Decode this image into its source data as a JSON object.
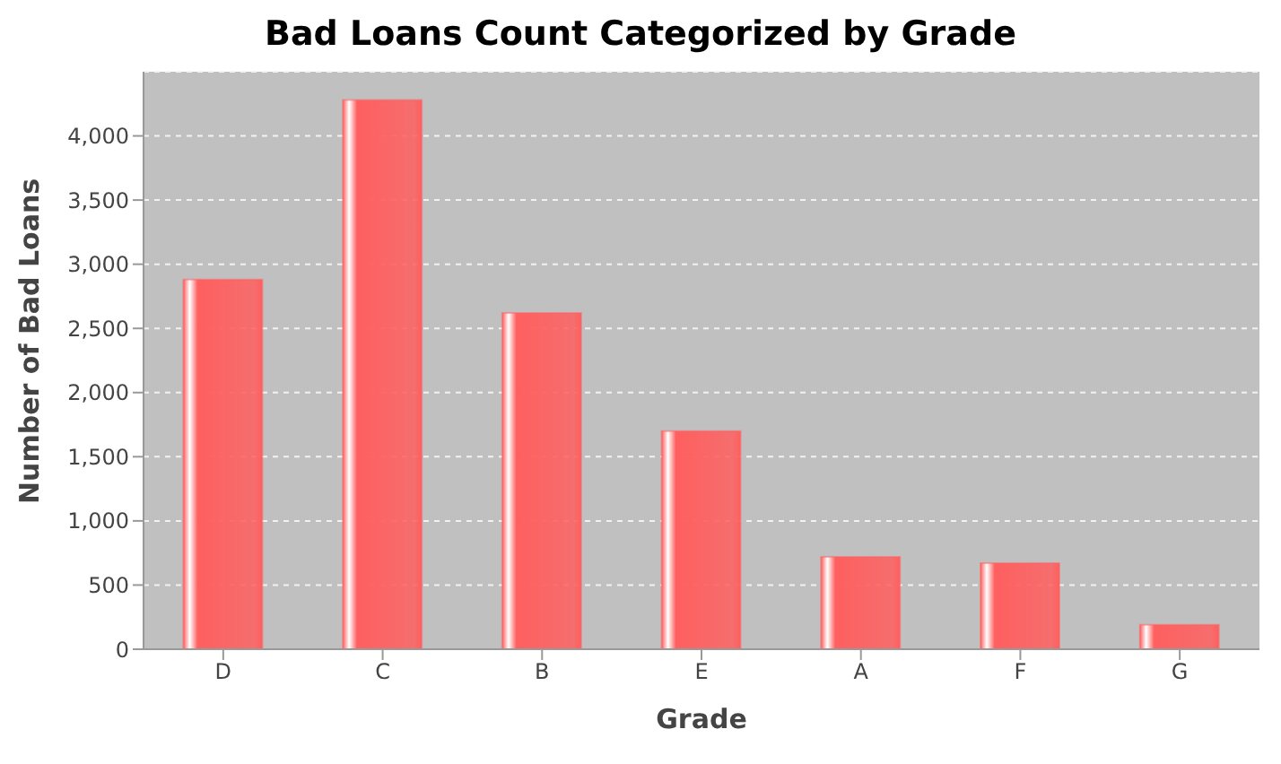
{
  "chart_data": {
    "type": "bar",
    "title": "Bad Loans Count Categorized by Grade",
    "xlabel": "Grade",
    "ylabel": "Number of Bad Loans",
    "categories": [
      "D",
      "C",
      "B",
      "E",
      "A",
      "F",
      "G"
    ],
    "values": [
      2880,
      4280,
      2620,
      1700,
      720,
      670,
      190
    ],
    "color": "#ff5f5f",
    "ylim": [
      0,
      4500
    ],
    "yticks": [
      0,
      {
        "value": 500,
        "label": "500"
      },
      {
        "value": 1000,
        "label": "1,000"
      },
      {
        "value": 1500,
        "label": "1,500"
      },
      {
        "value": 2000,
        "label": "2,000"
      },
      {
        "value": 2500,
        "label": "2,500"
      },
      {
        "value": 3000,
        "label": "3,000"
      },
      {
        "value": 3500,
        "label": "3,500"
      },
      {
        "value": 4000,
        "label": "4,000"
      }
    ],
    "grid": "y",
    "legend": false
  }
}
